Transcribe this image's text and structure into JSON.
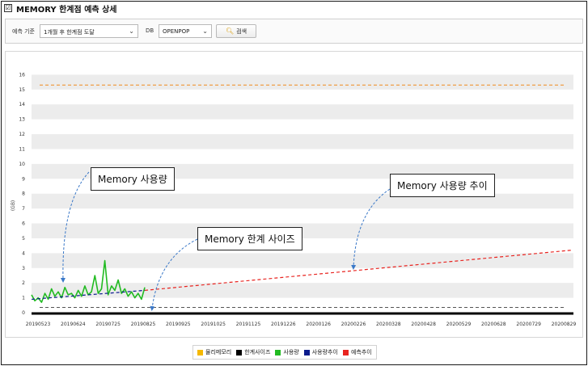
{
  "window": {
    "title": "MEMORY 한계점 예측 상세",
    "checkbox_symbol": "☑"
  },
  "filters": {
    "period_label": "예측 기준",
    "period_value": "1개월 후 한계점 도달",
    "db_label": "DB",
    "db_value": "OPENPOP",
    "search_label": "검색",
    "search_icon": "search-icon",
    "chevron": "⌄"
  },
  "callouts": {
    "usage": "Memory 사용량",
    "trend": "Memory 사용량 추이",
    "limit": "Memory 한계 사이즈"
  },
  "legend": [
    {
      "label": "물리메모리",
      "color": "#f5b800"
    },
    {
      "label": "한계사이즈",
      "color": "#000000"
    },
    {
      "label": "사용량",
      "color": "#22bb22"
    },
    {
      "label": "사용량추이",
      "color": "#0b1b8c"
    },
    {
      "label": "예측추이",
      "color": "#e8231f"
    }
  ],
  "chart_data": {
    "type": "line",
    "ylabel": "(GB)",
    "ylim": [
      0,
      17
    ],
    "yticks": [
      0,
      1,
      2,
      3,
      4,
      5,
      6,
      7,
      8,
      9,
      10,
      11,
      12,
      13,
      14,
      15,
      16
    ],
    "x_start": "2019-05-23",
    "x_end": "2020-09-22",
    "xtick_labels": [
      "20190523",
      "20190624",
      "20190725",
      "20190825",
      "20190925",
      "20191025",
      "20191125",
      "20191226",
      "20200126",
      "20200226",
      "20200328",
      "20200428",
      "20200529",
      "20200628",
      "20200729",
      "20200829"
    ],
    "grid": "alternating horizontal bands",
    "physical_memory": {
      "name": "물리메모리",
      "value": 15.3,
      "color": "#f08a1c"
    },
    "limit_size": {
      "name": "한계사이즈",
      "value": 0.35,
      "color": "#555555"
    },
    "usage_trend": {
      "name": "사용량추이",
      "x": [
        "2019-05-23",
        "2019-09-02"
      ],
      "y": [
        0.9,
        1.5
      ],
      "color": "#0b1b8c"
    },
    "forecast_trend": {
      "name": "예측추이",
      "x": [
        "2019-09-02",
        "2020-09-20"
      ],
      "y": [
        1.5,
        4.2
      ],
      "color": "#e8231f"
    },
    "usage": {
      "name": "사용량",
      "color": "#22bb22",
      "x": [
        "2019-05-23",
        "2019-05-26",
        "2019-05-29",
        "2019-06-01",
        "2019-06-04",
        "2019-06-07",
        "2019-06-10",
        "2019-06-13",
        "2019-06-16",
        "2019-06-19",
        "2019-06-22",
        "2019-06-25",
        "2019-06-28",
        "2019-07-01",
        "2019-07-04",
        "2019-07-07",
        "2019-07-10",
        "2019-07-13",
        "2019-07-16",
        "2019-07-19",
        "2019-07-22",
        "2019-07-25",
        "2019-07-28",
        "2019-07-31",
        "2019-08-03",
        "2019-08-06",
        "2019-08-09",
        "2019-08-12",
        "2019-08-15",
        "2019-08-18",
        "2019-08-21",
        "2019-08-24",
        "2019-08-27",
        "2019-08-30",
        "2019-09-02"
      ],
      "y": [
        1.2,
        0.8,
        1.0,
        0.7,
        1.3,
        0.9,
        1.6,
        1.1,
        1.4,
        1.0,
        1.7,
        1.2,
        1.3,
        1.0,
        1.5,
        1.1,
        1.8,
        1.2,
        1.4,
        2.5,
        1.3,
        1.6,
        3.5,
        1.2,
        1.8,
        1.5,
        2.2,
        1.3,
        1.6,
        1.1,
        1.4,
        1.0,
        1.3,
        0.9,
        1.7
      ]
    }
  }
}
